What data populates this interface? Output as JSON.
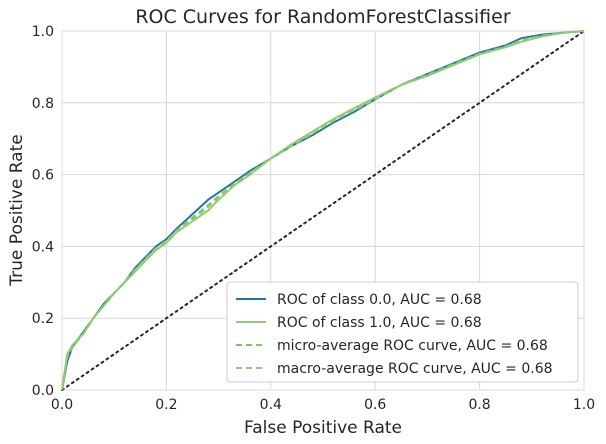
{
  "chart_data": {
    "type": "line",
    "title": "ROC Curves for RandomForestClassifier",
    "xlabel": "False Positive Rate",
    "ylabel": "True Positive Rate",
    "xlim": [
      0,
      1
    ],
    "ylim": [
      0,
      1
    ],
    "xticks": [
      "0.0",
      "0.2",
      "0.4",
      "0.6",
      "0.8",
      "1.0"
    ],
    "yticks": [
      "0.0",
      "0.2",
      "0.4",
      "0.6",
      "0.8",
      "1.0"
    ],
    "grid": true,
    "legend_position": "bottom-right",
    "series": [
      {
        "name": "ROC of class 0.0, AUC = 0.68",
        "color": "#1f77a4",
        "style": "solid",
        "x": [
          0,
          0.01,
          0.02,
          0.04,
          0.06,
          0.08,
          0.1,
          0.12,
          0.14,
          0.16,
          0.18,
          0.2,
          0.22,
          0.25,
          0.28,
          0.3,
          0.33,
          0.36,
          0.4,
          0.44,
          0.48,
          0.52,
          0.56,
          0.6,
          0.65,
          0.7,
          0.75,
          0.8,
          0.85,
          0.88,
          0.92,
          0.96,
          1.0
        ],
        "y": [
          0,
          0.08,
          0.12,
          0.16,
          0.2,
          0.24,
          0.27,
          0.3,
          0.34,
          0.37,
          0.4,
          0.42,
          0.45,
          0.49,
          0.53,
          0.55,
          0.58,
          0.61,
          0.645,
          0.68,
          0.71,
          0.745,
          0.775,
          0.81,
          0.85,
          0.88,
          0.91,
          0.94,
          0.96,
          0.98,
          0.99,
          0.995,
          1.0
        ]
      },
      {
        "name": "ROC of class 1.0, AUC = 0.68",
        "color": "#98c97a",
        "style": "solid",
        "x": [
          0,
          0.01,
          0.02,
          0.04,
          0.06,
          0.08,
          0.1,
          0.12,
          0.14,
          0.16,
          0.18,
          0.2,
          0.22,
          0.25,
          0.28,
          0.3,
          0.33,
          0.36,
          0.4,
          0.44,
          0.48,
          0.52,
          0.56,
          0.6,
          0.65,
          0.7,
          0.75,
          0.8,
          0.85,
          0.88,
          0.92,
          0.96,
          1.0
        ],
        "y": [
          0,
          0.1,
          0.125,
          0.155,
          0.2,
          0.235,
          0.27,
          0.3,
          0.33,
          0.36,
          0.39,
          0.41,
          0.44,
          0.47,
          0.5,
          0.53,
          0.57,
          0.6,
          0.645,
          0.685,
          0.72,
          0.755,
          0.785,
          0.815,
          0.85,
          0.875,
          0.905,
          0.935,
          0.955,
          0.97,
          0.985,
          0.995,
          1.0
        ]
      },
      {
        "name": "micro-average ROC curve, AUC = 0.68",
        "color": "#7dc562",
        "style": "dashed",
        "x": [
          0,
          0.01,
          0.02,
          0.04,
          0.06,
          0.08,
          0.1,
          0.12,
          0.14,
          0.16,
          0.18,
          0.2,
          0.22,
          0.25,
          0.28,
          0.3,
          0.33,
          0.36,
          0.4,
          0.44,
          0.48,
          0.52,
          0.56,
          0.6,
          0.65,
          0.7,
          0.75,
          0.8,
          0.85,
          0.88,
          0.92,
          0.96,
          1.0
        ],
        "y": [
          0,
          0.09,
          0.12,
          0.155,
          0.2,
          0.235,
          0.27,
          0.3,
          0.335,
          0.365,
          0.395,
          0.415,
          0.445,
          0.48,
          0.515,
          0.54,
          0.575,
          0.605,
          0.645,
          0.68,
          0.715,
          0.75,
          0.78,
          0.81,
          0.85,
          0.878,
          0.908,
          0.937,
          0.957,
          0.975,
          0.987,
          0.995,
          1.0
        ]
      },
      {
        "name": "macro-average ROC curve, AUC = 0.68",
        "color": "#8ccc6c",
        "style": "dashed",
        "x": [
          0,
          0.01,
          0.02,
          0.04,
          0.06,
          0.08,
          0.1,
          0.12,
          0.14,
          0.16,
          0.18,
          0.2,
          0.22,
          0.25,
          0.28,
          0.3,
          0.33,
          0.36,
          0.4,
          0.44,
          0.48,
          0.52,
          0.56,
          0.6,
          0.65,
          0.7,
          0.75,
          0.8,
          0.85,
          0.88,
          0.92,
          0.96,
          1.0
        ],
        "y": [
          0,
          0.095,
          0.12,
          0.155,
          0.2,
          0.235,
          0.27,
          0.3,
          0.335,
          0.365,
          0.395,
          0.415,
          0.445,
          0.475,
          0.51,
          0.535,
          0.57,
          0.6,
          0.645,
          0.68,
          0.715,
          0.75,
          0.78,
          0.81,
          0.85,
          0.877,
          0.906,
          0.936,
          0.956,
          0.972,
          0.986,
          0.995,
          1.0
        ]
      }
    ],
    "reference_line": {
      "x": [
        0,
        1
      ],
      "y": [
        0,
        1
      ],
      "color": "#262626",
      "style": "dotted"
    }
  }
}
